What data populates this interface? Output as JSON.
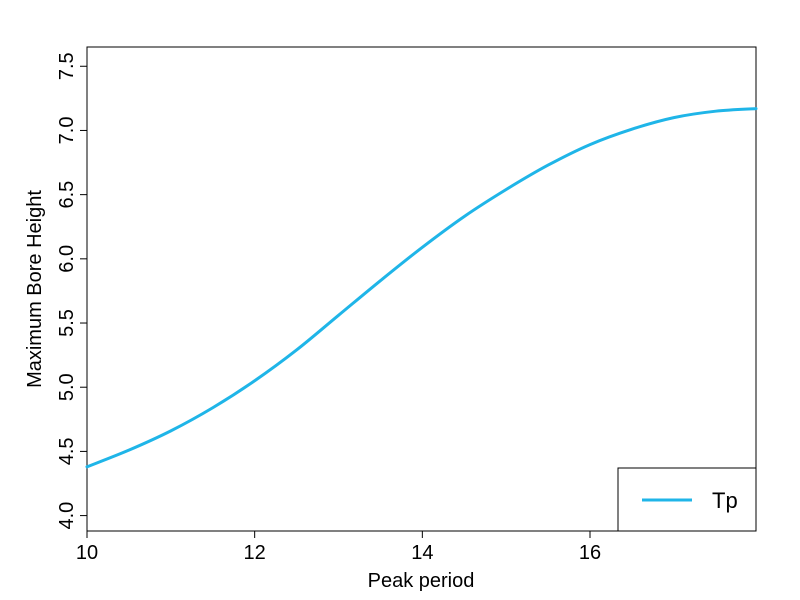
{
  "chart_data": {
    "type": "line",
    "xlabel": "Peak period",
    "ylabel": "Maximum Bore Height",
    "xlim": [
      10,
      17.98
    ],
    "ylim": [
      3.88,
      7.65
    ],
    "x_ticks": [
      "10",
      "12",
      "14",
      "16"
    ],
    "y_ticks": [
      "4.0",
      "4.5",
      "5.0",
      "5.5",
      "6.0",
      "6.5",
      "7.0",
      "7.5"
    ],
    "grid": false,
    "legend_position": "bottom-right",
    "series": [
      {
        "name": "Tp",
        "color": "#1FB5E8",
        "x": [
          10,
          10.5,
          11,
          11.5,
          12,
          12.5,
          13,
          13.5,
          14,
          14.5,
          15,
          15.5,
          16,
          16.5,
          17,
          17.5,
          17.98
        ],
        "y": [
          4.38,
          4.51,
          4.66,
          4.84,
          5.05,
          5.29,
          5.56,
          5.83,
          6.09,
          6.33,
          6.54,
          6.73,
          6.89,
          7.01,
          7.1,
          7.15,
          7.17
        ]
      }
    ]
  }
}
